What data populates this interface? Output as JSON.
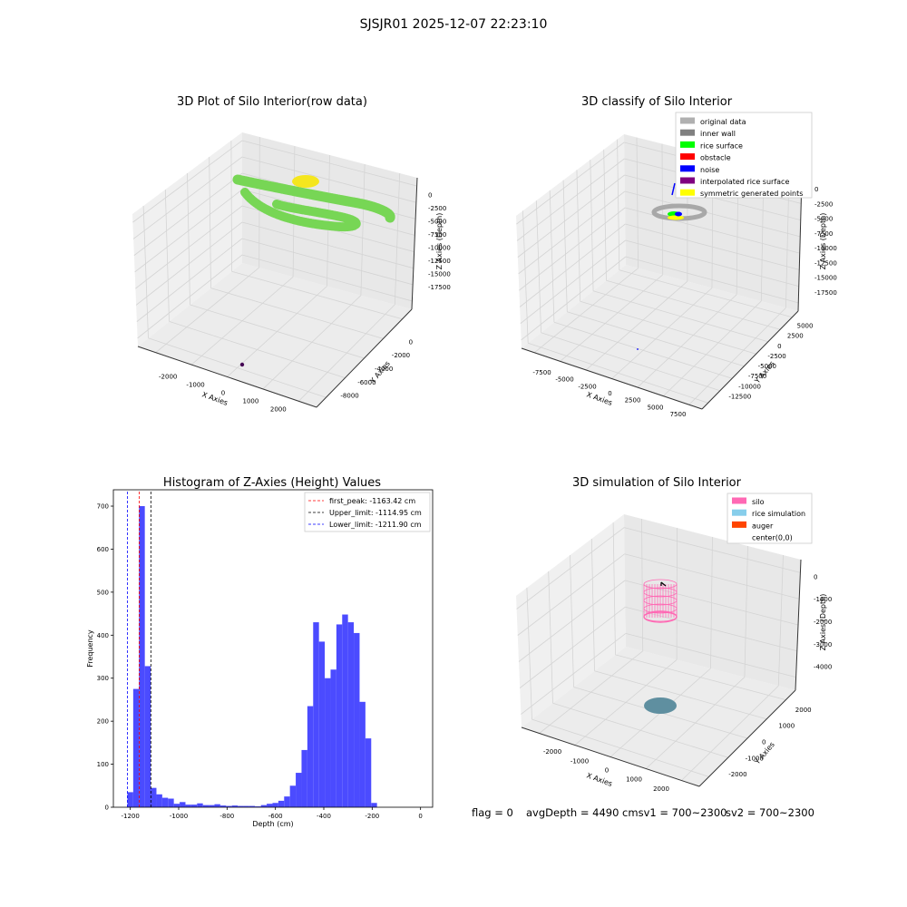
{
  "figure": {
    "suptitle": "SJSJR01 2025-12-07 22:23:10",
    "footer": {
      "flag": "flag = 0",
      "avg": "avgDepth = 4490 cmsv1 = 700~2300",
      "sv2": "sv2 = 700~2300"
    }
  },
  "chart_data": [
    {
      "type": "scatter3d",
      "title": "3D Plot of Silo Interior(row data)",
      "xlabel": "X Axies",
      "ylabel": "Y Axies",
      "zlabel": "Z Axies (Depth)",
      "xticks": [
        "-2000",
        "-1000",
        "0",
        "1000",
        "2000"
      ],
      "yticks": [
        "-8000",
        "-6000",
        "-4000",
        "-2000",
        "0"
      ],
      "zticks": [
        "0",
        "-2500",
        "-5000",
        "-7500",
        "-10000",
        "-12500",
        "-15000",
        "-17500"
      ],
      "groups": [
        {
          "color": "#77d655",
          "shape": "two curved bands"
        },
        {
          "color": "#f5e61e",
          "shape": "small cluster"
        },
        {
          "color": "#440154",
          "shape": "single point"
        }
      ]
    },
    {
      "type": "scatter3d",
      "title": "3D classify of Silo Interior",
      "xlabel": "X Axies",
      "ylabel": "Y Axies",
      "zlabel": "Z Axies (Depth)",
      "xticks": [
        "-7500",
        "-5000",
        "-2500",
        "0",
        "2500",
        "5000",
        "7500"
      ],
      "yticks": [
        "-12500",
        "-10000",
        "-7500",
        "-5000",
        "-2500",
        "0",
        "2500",
        "5000"
      ],
      "zticks": [
        "0",
        "-2500",
        "-5000",
        "-7500",
        "-10000",
        "-12500",
        "-15000",
        "-17500"
      ],
      "legend": [
        {
          "label": "original data",
          "color": "#b0b0b0"
        },
        {
          "label": "inner wall",
          "color": "#808080"
        },
        {
          "label": "rice surface",
          "color": "#00ff00"
        },
        {
          "label": "obstacle",
          "color": "#ff0000"
        },
        {
          "label": "noise",
          "color": "#0000ff"
        },
        {
          "label": "interpolated rice surface",
          "color": "#800080"
        },
        {
          "label": "symmetric generated points",
          "color": "#ffff00"
        }
      ]
    },
    {
      "type": "bar",
      "title": "Histogram of Z-Axies (Height) Values",
      "xlabel": "Depth (cm)",
      "ylabel": "Frequency",
      "xlim": [
        -1270,
        50
      ],
      "ylim": [
        0,
        738
      ],
      "xticks": [
        -1200,
        -1000,
        -800,
        -600,
        -400,
        -200,
        0
      ],
      "yticks": [
        0,
        100,
        200,
        300,
        400,
        500,
        600,
        700
      ],
      "bin_start": -1212,
      "bin_width": 24.0,
      "values": [
        35,
        275,
        700,
        328,
        45,
        30,
        22,
        20,
        8,
        12,
        6,
        6,
        9,
        5,
        5,
        7,
        4,
        3,
        4,
        3,
        3,
        3,
        2,
        5,
        8,
        10,
        15,
        25,
        50,
        80,
        133,
        235,
        430,
        385,
        300,
        320,
        425,
        448,
        430,
        405,
        245,
        160,
        10
      ],
      "bar_color": "#4b4bff",
      "vlines": [
        {
          "value": -1163.42,
          "color": "#ff0000",
          "label": "first_peak: -1163.42 cm"
        },
        {
          "value": -1114.95,
          "color": "#000000",
          "label": "Upper_limit: -1114.95 cm"
        },
        {
          "value": -1211.9,
          "color": "#0000ff",
          "label": "Lower_limit: -1211.90 cm"
        }
      ]
    },
    {
      "type": "surface3d",
      "title": "3D simulation of Silo Interior",
      "xlabel": "X Axies",
      "ylabel": "Y Axies",
      "zlabel": "Z Axies (Depth)",
      "xticks": [
        "-2000",
        "-1000",
        "0",
        "1000",
        "2000"
      ],
      "yticks": [
        "-2000",
        "-1000",
        "0",
        "1000",
        "2000"
      ],
      "zticks": [
        "0",
        "-1000",
        "-2000",
        "-3000",
        "-4000"
      ],
      "legend": [
        {
          "label": "silo",
          "color": "#ff69b4"
        },
        {
          "label": "rice simulation",
          "color": "#87ceeb"
        },
        {
          "label": "auger",
          "color": "#ff4500"
        },
        {
          "label": "center(0,0)",
          "color": "#ffffff"
        }
      ]
    }
  ]
}
